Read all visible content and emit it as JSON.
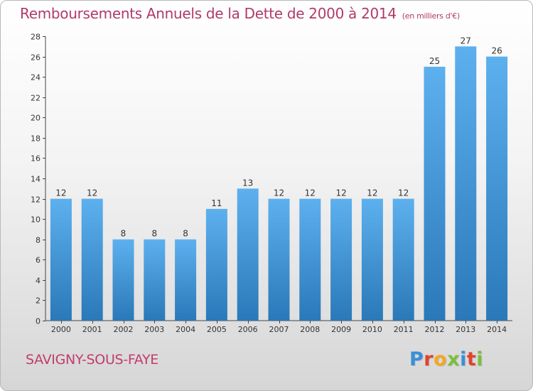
{
  "header": {
    "title": "Remboursements Annuels de la Dette de 2000 à 2014",
    "unit": "(en milliers d'€)"
  },
  "footer": {
    "commune": "SAVIGNY-SOUS-FAYE",
    "logo_text": "Proxiti",
    "logo_colors": [
      "#3a8fd8",
      "#e0432d",
      "#f5a623",
      "#7bbf3a",
      "#3a8fd8",
      "#e0432d",
      "#7bbf3a"
    ]
  },
  "chart_data": {
    "type": "bar",
    "title": "Remboursements Annuels de la Dette de 2000 à 2014",
    "subtitle": "(en milliers d'€)",
    "categories": [
      "2000",
      "2001",
      "2002",
      "2003",
      "2004",
      "2005",
      "2006",
      "2007",
      "2008",
      "2009",
      "2010",
      "2011",
      "2012",
      "2013",
      "2014"
    ],
    "values": [
      12,
      12,
      8,
      8,
      8,
      11,
      13,
      12,
      12,
      12,
      12,
      12,
      25,
      27,
      26
    ],
    "data_labels": [
      "12",
      "12",
      "8",
      "8",
      "8",
      "11",
      "13",
      "12",
      "12",
      "12",
      "12",
      "12",
      "25",
      "27",
      "26"
    ],
    "ylim": [
      0,
      28
    ],
    "yticks": [
      0,
      2,
      4,
      6,
      8,
      10,
      12,
      14,
      16,
      18,
      20,
      22,
      24,
      26,
      28
    ],
    "grid": false,
    "bar_color": "#3a8fd6"
  }
}
